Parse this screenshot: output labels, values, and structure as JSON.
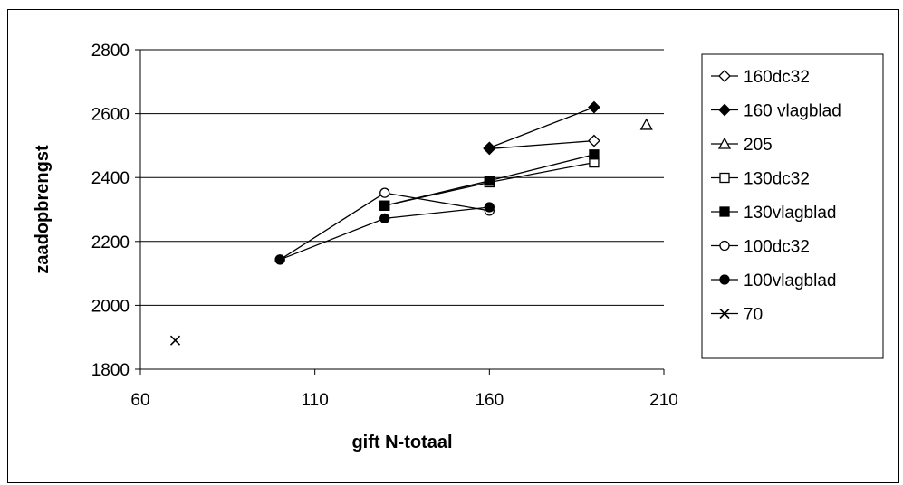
{
  "chart_data": {
    "type": "scatter",
    "xlabel": "gift N-totaal",
    "ylabel": "zaadopbrengst",
    "xlim": [
      60,
      210
    ],
    "ylim": [
      1800,
      2800
    ],
    "xticks": [
      60,
      110,
      160,
      210
    ],
    "yticks": [
      1800,
      2000,
      2200,
      2400,
      2600,
      2800
    ],
    "grid": "horizontal",
    "legend_position": "right",
    "series": [
      {
        "name": "160dc32",
        "marker": "diamond-open",
        "points": [
          [
            160,
            2490
          ],
          [
            190,
            2515
          ]
        ]
      },
      {
        "name": "160 vlagblad",
        "marker": "diamond-filled",
        "points": [
          [
            160,
            2493
          ],
          [
            190,
            2620
          ]
        ]
      },
      {
        "name": "205",
        "marker": "triangle-open",
        "points": [
          [
            205,
            2565
          ]
        ]
      },
      {
        "name": "130dc32",
        "marker": "square-open",
        "points": [
          [
            130,
            2312
          ],
          [
            160,
            2385
          ],
          [
            190,
            2447
          ]
        ]
      },
      {
        "name": "130vlagblad",
        "marker": "square-filled",
        "points": [
          [
            130,
            2312
          ],
          [
            160,
            2390
          ],
          [
            190,
            2472
          ]
        ]
      },
      {
        "name": "100dc32",
        "marker": "circle-open",
        "points": [
          [
            100,
            2143
          ],
          [
            130,
            2352
          ],
          [
            160,
            2296
          ]
        ]
      },
      {
        "name": "100vlagblad",
        "marker": "circle-filled",
        "points": [
          [
            100,
            2143
          ],
          [
            130,
            2272
          ],
          [
            160,
            2307
          ]
        ]
      },
      {
        "name": "70",
        "marker": "x",
        "points": [
          [
            70,
            1890
          ]
        ]
      }
    ]
  }
}
